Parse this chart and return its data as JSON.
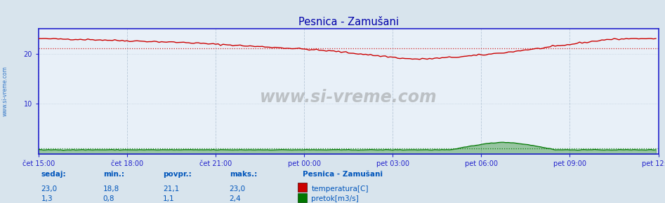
{
  "title": "Pesnica - Zamušani",
  "bg_color": "#d8e4ed",
  "plot_bg_color": "#e8f0f8",
  "border_color": "#2222cc",
  "grid_color": "#b8c8d8",
  "ylim": [
    0,
    25
  ],
  "yticks": [
    10,
    20
  ],
  "xlabel_times": [
    "čet 15:00",
    "čet 18:00",
    "čet 21:00",
    "pet 00:00",
    "pet 03:00",
    "pet 06:00",
    "pet 09:00",
    "pet 12:00"
  ],
  "n_points": 252,
  "temp_color": "#cc0000",
  "flow_color": "#007700",
  "temp_avg": 21.1,
  "temp_min": 18.8,
  "temp_max": 23.0,
  "temp_current": 23.0,
  "flow_avg": 1.1,
  "flow_min": 0.8,
  "flow_max": 2.4,
  "flow_current": 1.3,
  "watermark": "www.si-vreme.com",
  "label_color": "#0055bb",
  "title_color": "#0000aa",
  "axis_color": "#2222cc",
  "tick_color": "#2222cc"
}
